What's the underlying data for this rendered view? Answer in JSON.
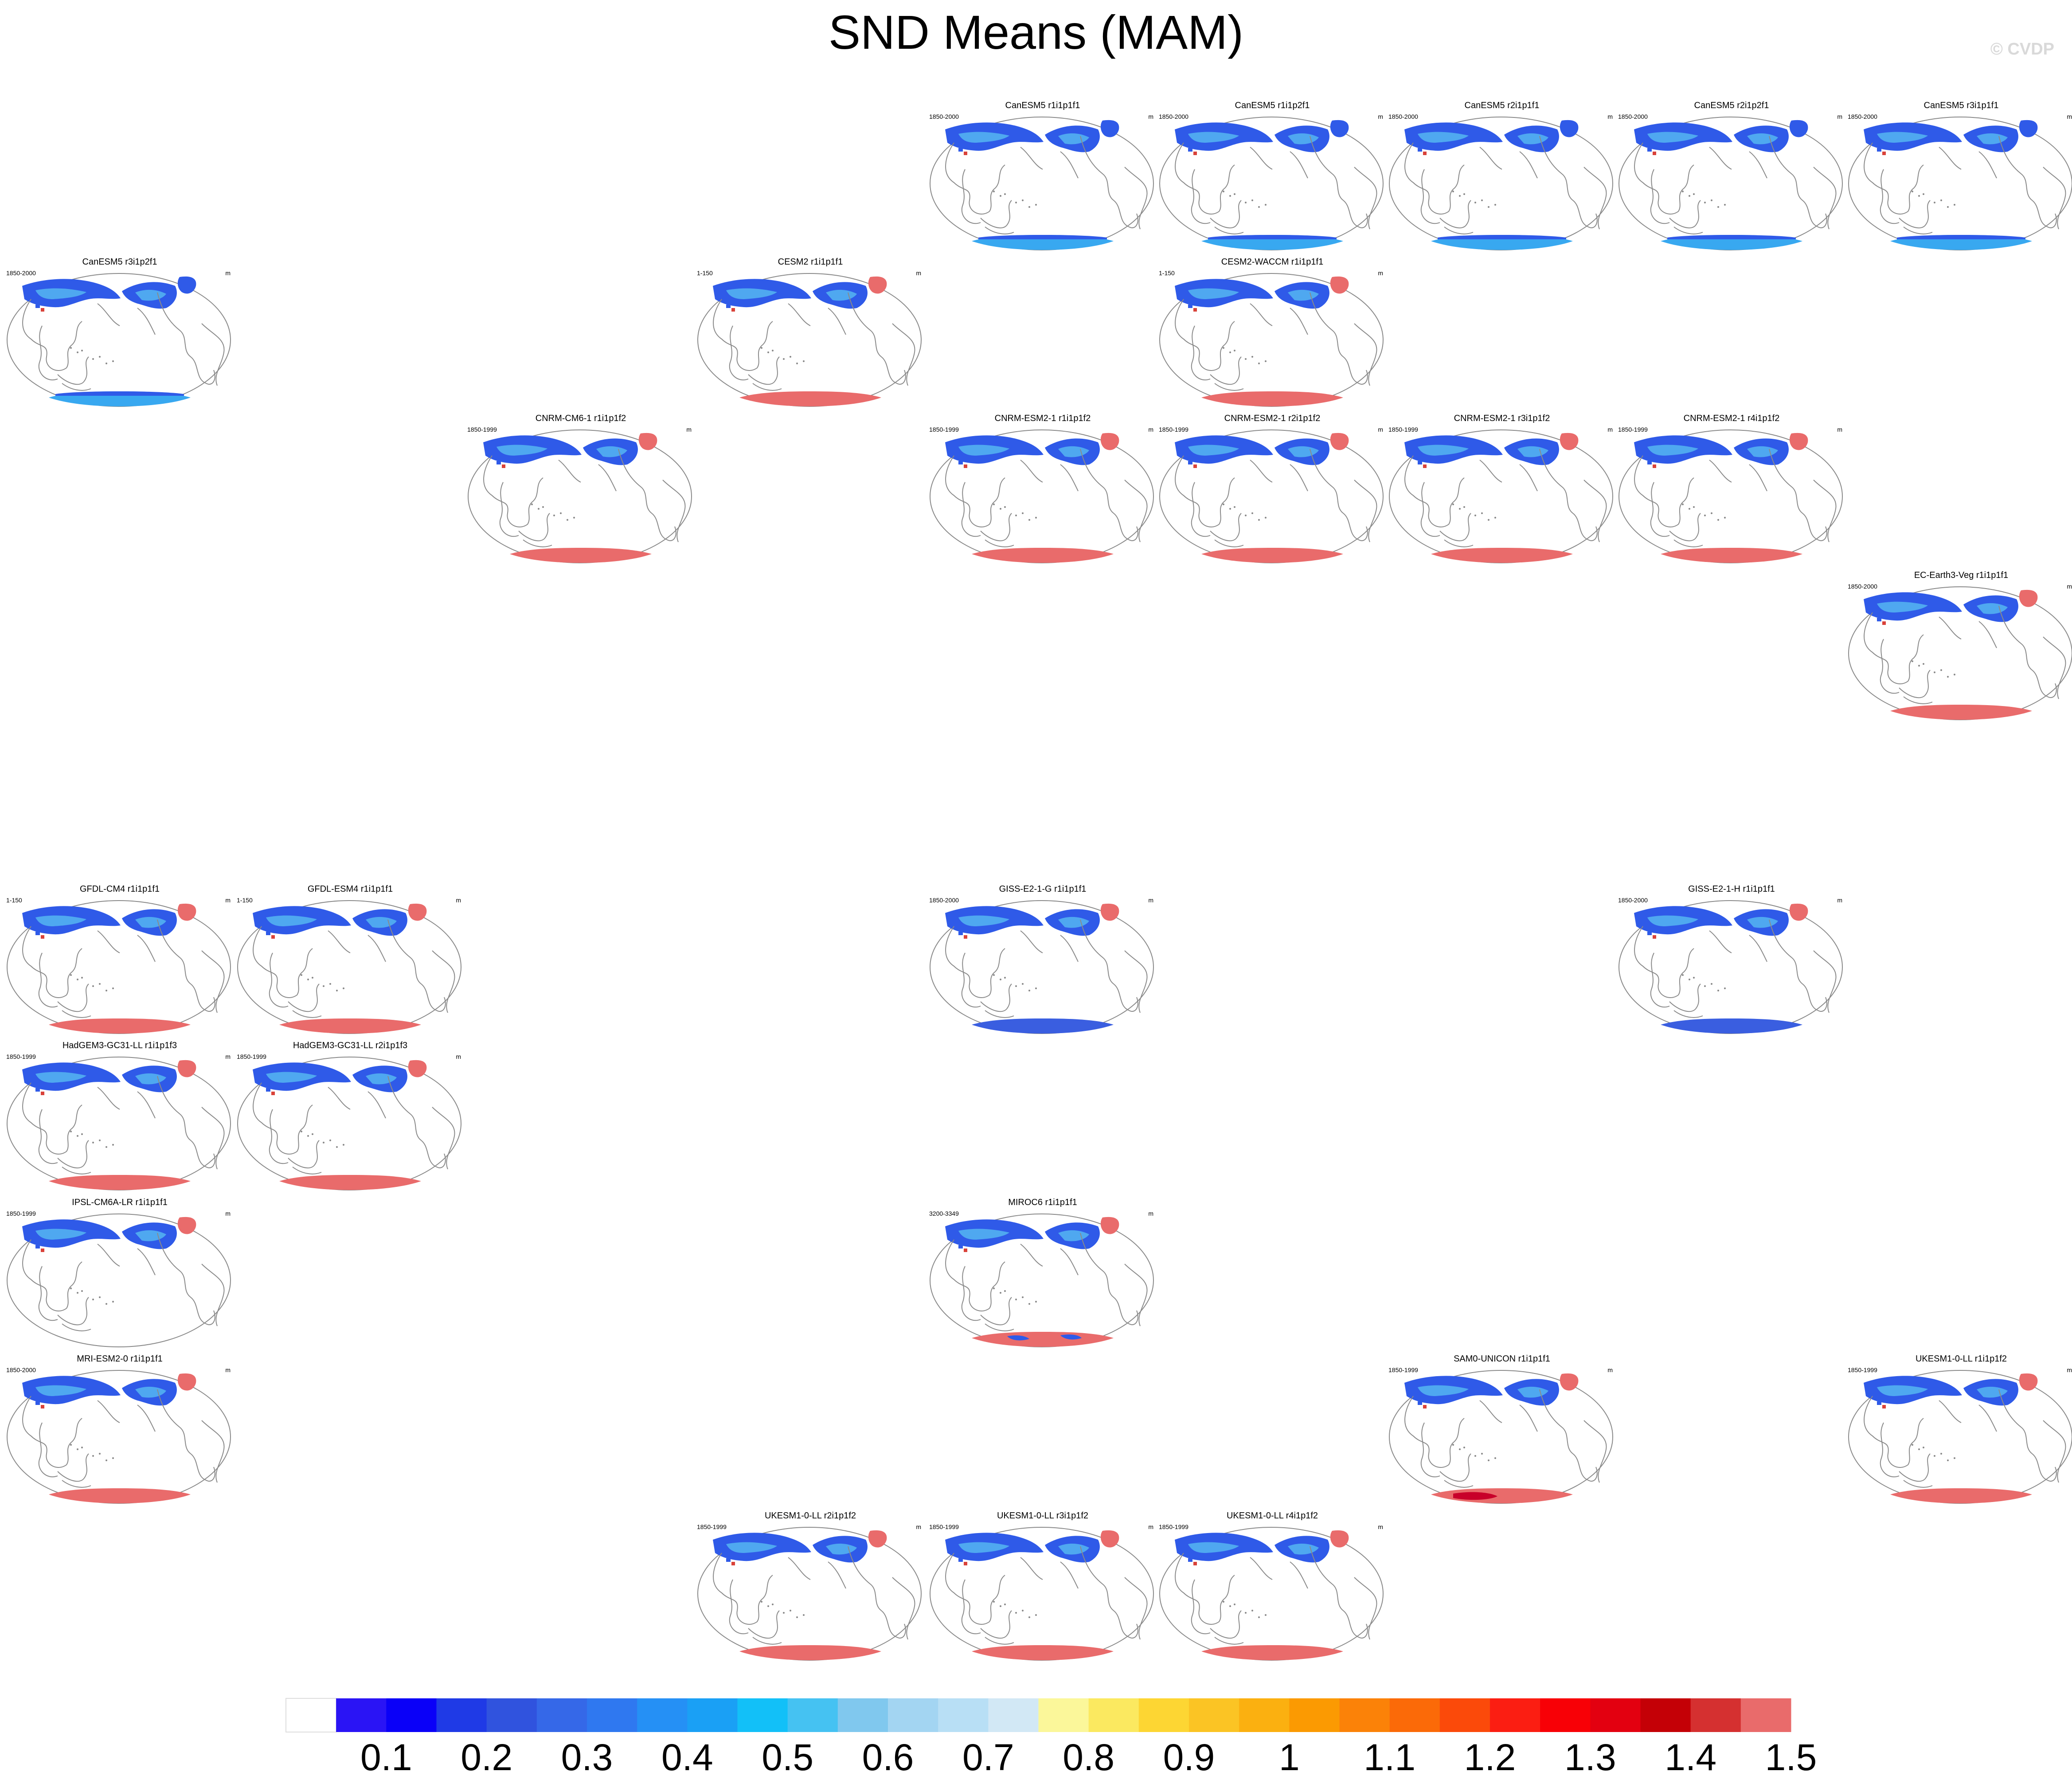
{
  "title": "SND Means (MAM)",
  "watermark": "© CVDP",
  "units": "m",
  "colors": {
    "na_snow_blue": "#2f5ae8",
    "na_snow_light": "#4fa8f0",
    "antarctic_blue": "#38a8f0",
    "antarctic_dark": "#3a5ee0",
    "antarctic_red": "#e96b6b",
    "antarctic_dark_red": "#c8002a",
    "coast": "#8a8a8a"
  },
  "panels": [
    {
      "title": "CanESM5 r1i1p1f1",
      "years": "1850-2000",
      "antarctic": "blue",
      "greenland": "blue"
    },
    {
      "title": "CanESM5 r1i1p2f1",
      "years": "1850-2000",
      "antarctic": "blue",
      "greenland": "blue"
    },
    {
      "title": "CanESM5 r2i1p1f1",
      "years": "1850-2000",
      "antarctic": "blue",
      "greenland": "blue"
    },
    {
      "title": "CanESM5 r2i1p2f1",
      "years": "1850-2000",
      "antarctic": "blue",
      "greenland": "blue"
    },
    {
      "title": "CanESM5 r3i1p1f1",
      "years": "1850-2000",
      "antarctic": "blue",
      "greenland": "blue"
    },
    {
      "title": "CanESM5 r3i1p2f1",
      "years": "1850-2000",
      "antarctic": "blue",
      "greenland": "blue"
    },
    {
      "title": "CESM2 r1i1p1f1",
      "years": "1-150",
      "antarctic": "red",
      "greenland": "red"
    },
    {
      "title": "CESM2-WACCM r1i1p1f1",
      "years": "1-150",
      "antarctic": "red",
      "greenland": "red"
    },
    {
      "title": "CNRM-CM6-1 r1i1p1f2",
      "years": "1850-1999",
      "antarctic": "red",
      "greenland": "red"
    },
    {
      "title": "CNRM-ESM2-1 r1i1p1f2",
      "years": "1850-1999",
      "antarctic": "red",
      "greenland": "red"
    },
    {
      "title": "CNRM-ESM2-1 r2i1p1f2",
      "years": "1850-1999",
      "antarctic": "red",
      "greenland": "red"
    },
    {
      "title": "CNRM-ESM2-1 r3i1p1f2",
      "years": "1850-1999",
      "antarctic": "red",
      "greenland": "red"
    },
    {
      "title": "CNRM-ESM2-1 r4i1p1f2",
      "years": "1850-1999",
      "antarctic": "red",
      "greenland": "red"
    },
    {
      "title": "EC-Earth3-Veg r1i1p1f1",
      "years": "1850-2000",
      "antarctic": "red",
      "greenland": "red"
    },
    {
      "title": "GFDL-CM4 r1i1p1f1",
      "years": "1-150",
      "antarctic": "red",
      "greenland": "red"
    },
    {
      "title": "GFDL-ESM4 r1i1p1f1",
      "years": "1-150",
      "antarctic": "red",
      "greenland": "red"
    },
    {
      "title": "GISS-E2-1-G r1i1p1f1",
      "years": "1850-2000",
      "antarctic": "dark",
      "greenland": "red"
    },
    {
      "title": "GISS-E2-1-H r1i1p1f1",
      "years": "1850-2000",
      "antarctic": "dark",
      "greenland": "red"
    },
    {
      "title": "HadGEM3-GC31-LL r1i1p1f3",
      "years": "1850-1999",
      "antarctic": "red",
      "greenland": "red"
    },
    {
      "title": "HadGEM3-GC31-LL r2i1p1f3",
      "years": "1850-1999",
      "antarctic": "red",
      "greenland": "red"
    },
    {
      "title": "IPSL-CM6A-LR r1i1p1f1",
      "years": "1850-1999",
      "antarctic": "none",
      "greenland": "red"
    },
    {
      "title": "MIROC6 r1i1p1f1",
      "years": "3200-3349",
      "antarctic": "mixed",
      "greenland": "red"
    },
    {
      "title": "MRI-ESM2-0 r1i1p1f1",
      "years": "1850-2000",
      "antarctic": "red",
      "greenland": "red"
    },
    {
      "title": "SAM0-UNICON r1i1p1f1",
      "years": "1850-1999",
      "antarctic": "darkred",
      "greenland": "red"
    },
    {
      "title": "UKESM1-0-LL r1i1p1f2",
      "years": "1850-1999",
      "antarctic": "red",
      "greenland": "red"
    },
    {
      "title": "UKESM1-0-LL r2i1p1f2",
      "years": "1850-1999",
      "antarctic": "red",
      "greenland": "red"
    },
    {
      "title": "UKESM1-0-LL r3i1p1f2",
      "years": "1850-1999",
      "antarctic": "red",
      "greenland": "red"
    },
    {
      "title": "UKESM1-0-LL r4i1p1f2",
      "years": "1850-1999",
      "antarctic": "red",
      "greenland": "red"
    }
  ],
  "chart_data": {
    "type": "heatmap",
    "title": "SND Means (MAM)",
    "variable": "snow depth",
    "units": "m",
    "colorbar": {
      "label_values": [
        "0.1",
        "0.2",
        "0.3",
        "0.4",
        "0.5",
        "0.6",
        "0.7",
        "0.8",
        "0.9",
        "1",
        "1.1",
        "1.2",
        "1.3",
        "1.4",
        "1.5"
      ],
      "colors": [
        "#ffffff",
        "#2a14f5",
        "#0a00f8",
        "#1f3ae6",
        "#3053de",
        "#3568e8",
        "#2f78f0",
        "#2590f5",
        "#1aa0f5",
        "#12c0f8",
        "#45c2f2",
        "#80c8ee",
        "#a3d5f2",
        "#b8dff5",
        "#d2e8f5",
        "#fbf79a",
        "#fbe960",
        "#fdd633",
        "#fbc424",
        "#fbb010",
        "#fb9a02",
        "#fb8208",
        "#fb6a08",
        "#fb4a0a",
        "#fb1e12",
        "#f80006",
        "#e30010",
        "#c40006",
        "#d53030",
        "#e96b6b"
      ]
    }
  }
}
